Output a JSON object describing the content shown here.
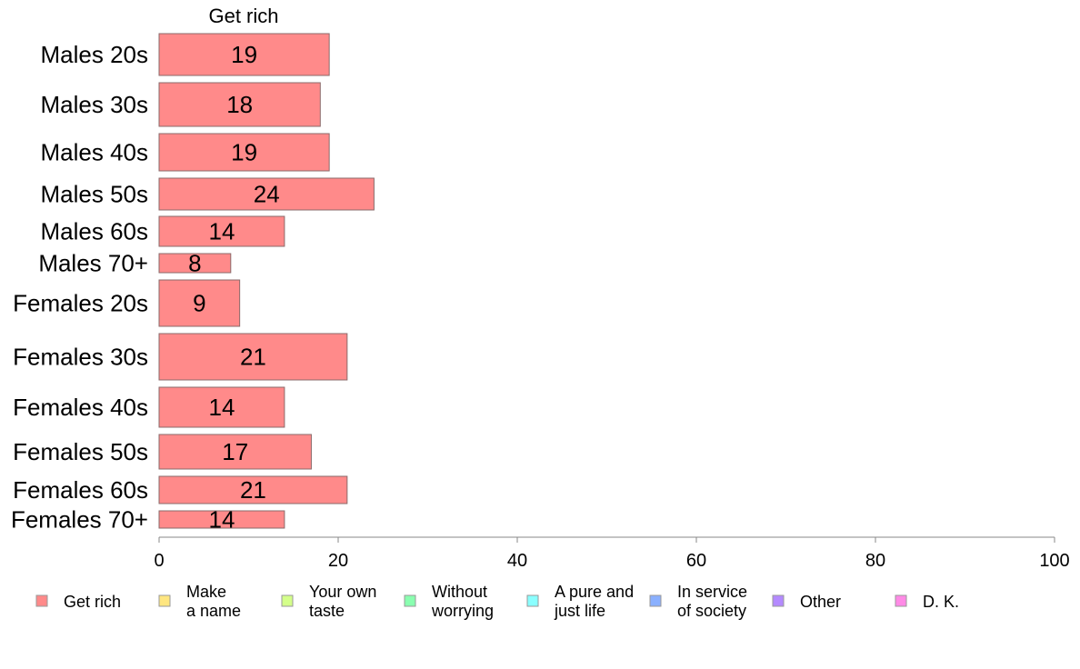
{
  "chart_data": {
    "type": "bar",
    "orientation": "horizontal",
    "panel_title": "Get rich",
    "categories": [
      "Males 20s",
      "Males 30s",
      "Males 40s",
      "Males 50s",
      "Males 60s",
      "Males 70+",
      "Females 20s",
      "Females 30s",
      "Females 40s",
      "Females 50s",
      "Females 60s",
      "Females 70+"
    ],
    "values": [
      19,
      18,
      19,
      24,
      14,
      8,
      9,
      21,
      14,
      17,
      21,
      14
    ],
    "xlim": [
      0,
      100
    ],
    "xticks": [
      0,
      20,
      40,
      60,
      80,
      100
    ],
    "grid": false,
    "legend_position": "bottom",
    "legend": [
      {
        "lines": [
          "Get rich"
        ],
        "color": "#ff8a8a"
      },
      {
        "lines": [
          "Make",
          "a name"
        ],
        "color": "#ffe680"
      },
      {
        "lines": [
          "Your own",
          "taste"
        ],
        "color": "#d4ff8a"
      },
      {
        "lines": [
          "Without",
          "worrying"
        ],
        "color": "#8affb0"
      },
      {
        "lines": [
          "A pure and",
          "just life"
        ],
        "color": "#8affff"
      },
      {
        "lines": [
          "In service",
          "of society"
        ],
        "color": "#8ab0ff"
      },
      {
        "lines": [
          "Other"
        ],
        "color": "#b48aff"
      },
      {
        "lines": [
          "D. K."
        ],
        "color": "#ff8ae6"
      }
    ],
    "bar_color": "#ff8a8a"
  }
}
